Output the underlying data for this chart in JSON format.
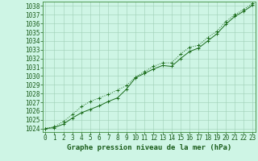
{
  "title": "Graphe pression niveau de la mer (hPa)",
  "x_values": [
    0,
    1,
    2,
    3,
    4,
    5,
    6,
    7,
    8,
    9,
    10,
    11,
    12,
    13,
    14,
    15,
    16,
    17,
    18,
    19,
    20,
    21,
    22,
    23
  ],
  "y1_values": [
    1024.0,
    1024.1,
    1024.5,
    1025.2,
    1025.8,
    1026.2,
    1026.6,
    1027.1,
    1027.5,
    1028.5,
    1029.8,
    1030.3,
    1030.8,
    1031.2,
    1031.1,
    1032.0,
    1032.8,
    1033.2,
    1034.0,
    1034.8,
    1035.9,
    1036.8,
    1037.4,
    1038.1
  ],
  "y2_values": [
    1024.0,
    1024.2,
    1024.8,
    1025.6,
    1026.5,
    1027.1,
    1027.5,
    1027.9,
    1028.4,
    1028.9,
    1029.9,
    1030.5,
    1031.1,
    1031.5,
    1031.5,
    1032.5,
    1033.3,
    1033.5,
    1034.4,
    1035.1,
    1036.2,
    1037.0,
    1037.6,
    1038.3
  ],
  "ylim": [
    1023.6,
    1038.5
  ],
  "xlim": [
    -0.3,
    23.3
  ],
  "yticks": [
    1024,
    1025,
    1026,
    1027,
    1028,
    1029,
    1030,
    1031,
    1032,
    1033,
    1034,
    1035,
    1036,
    1037,
    1038
  ],
  "xticks": [
    0,
    1,
    2,
    3,
    4,
    5,
    6,
    7,
    8,
    9,
    10,
    11,
    12,
    13,
    14,
    15,
    16,
    17,
    18,
    19,
    20,
    21,
    22,
    23
  ],
  "line_color": "#1a6b1a",
  "bg_color": "#cef5e5",
  "grid_color": "#9ecfb5",
  "border_color": "#3a8a3a",
  "tick_color": "#1a5c1a",
  "label_fontsize": 5.5,
  "title_fontsize": 6.5
}
